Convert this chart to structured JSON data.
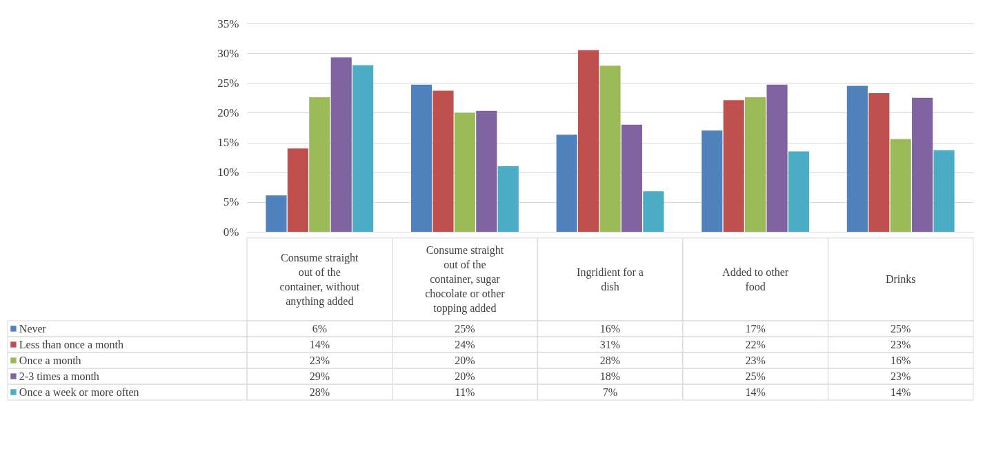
{
  "chart_data": {
    "type": "bar",
    "categories": [
      "Consume straight out of the container, without anything added",
      "Consume straight out of the container, sugar chocolate or other topping added",
      "Ingridient for a dish",
      "Added to other food",
      "Drinks"
    ],
    "series": [
      {
        "name": "Never",
        "color": "#4f81bd",
        "values": [
          6.1,
          24.7,
          16.3,
          17.0,
          24.5
        ],
        "value_labels": [
          "6%",
          "25%",
          "16%",
          "17%",
          "25%"
        ]
      },
      {
        "name": "Less than once a month",
        "color": "#c0504d",
        "values": [
          14.0,
          23.7,
          30.5,
          22.1,
          23.3
        ],
        "value_labels": [
          "14%",
          "24%",
          "31%",
          "22%",
          "23%"
        ]
      },
      {
        "name": "Once a month",
        "color": "#9bbb59",
        "values": [
          22.6,
          20.0,
          27.9,
          22.6,
          15.6
        ],
        "value_labels": [
          "23%",
          "20%",
          "28%",
          "23%",
          "16%"
        ]
      },
      {
        "name": "2-3 times a month",
        "color": "#8064a2",
        "values": [
          29.3,
          20.3,
          18.0,
          24.7,
          22.5
        ],
        "value_labels": [
          "29%",
          "20%",
          "18%",
          "25%",
          "23%"
        ]
      },
      {
        "name": "Once a week or more often",
        "color": "#4bacc6",
        "values": [
          28.0,
          11.0,
          6.8,
          13.5,
          13.7
        ],
        "value_labels": [
          "28%",
          "11%",
          "7%",
          "14%",
          "14%"
        ]
      }
    ],
    "ylim": [
      0,
      35
    ],
    "yticks": [
      {
        "value": 0,
        "label": "0%"
      },
      {
        "value": 5,
        "label": "5%"
      },
      {
        "value": 10,
        "label": "10%"
      },
      {
        "value": 15,
        "label": "15%"
      },
      {
        "value": 20,
        "label": "20%"
      },
      {
        "value": 25,
        "label": "25%"
      },
      {
        "value": 30,
        "label": "30%"
      },
      {
        "value": 35,
        "label": "35%"
      }
    ],
    "grid": "y",
    "legend": "left"
  }
}
